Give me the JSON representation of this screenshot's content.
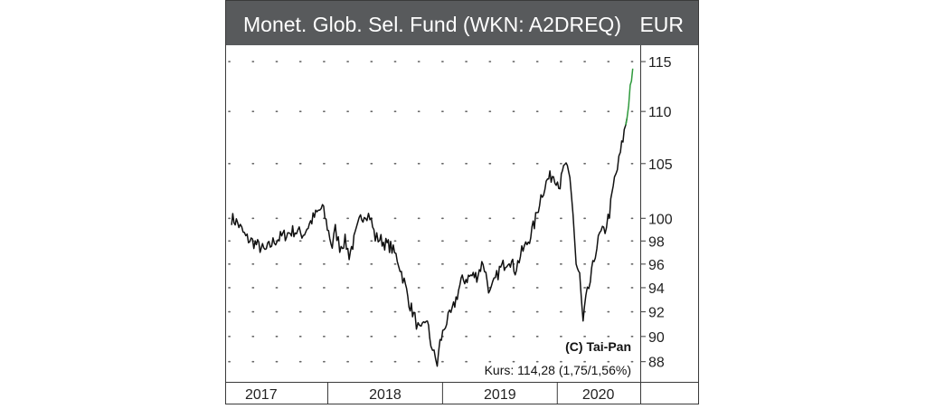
{
  "chart_data": {
    "type": "line",
    "title": "Monet. Glob. Sel. Fund (WKN: A2DREQ)",
    "currency": "EUR",
    "y_scale": "log",
    "ylim": [
      86.5,
      116.5
    ],
    "y_ticks": [
      88,
      90,
      92,
      94,
      96,
      98,
      100,
      105,
      110,
      115
    ],
    "x_ticks": [
      "2017",
      "2018",
      "2019",
      "2020"
    ],
    "x": [
      "2017-03-01",
      "2017-03-20",
      "2017-04-15",
      "2017-05-15",
      "2017-06-15",
      "2017-07-15",
      "2017-08-15",
      "2017-09-15",
      "2017-10-15",
      "2017-11-15",
      "2017-12-15",
      "2018-01-15",
      "2018-01-25",
      "2018-02-08",
      "2018-02-25",
      "2018-03-10",
      "2018-03-25",
      "2018-04-15",
      "2018-05-01",
      "2018-05-15",
      "2018-06-01",
      "2018-06-15",
      "2018-07-01",
      "2018-07-20",
      "2018-08-10",
      "2018-09-01",
      "2018-09-20",
      "2018-10-05",
      "2018-10-15",
      "2018-10-25",
      "2018-11-10",
      "2018-11-25",
      "2018-12-05",
      "2018-12-15",
      "2018-12-24",
      "2019-01-10",
      "2019-02-01",
      "2019-03-01",
      "2019-04-01",
      "2019-04-20",
      "2019-05-10",
      "2019-06-01",
      "2019-07-01",
      "2019-08-01",
      "2019-08-20",
      "2019-09-10",
      "2019-10-01",
      "2019-10-20",
      "2019-11-10",
      "2019-12-01",
      "2019-12-20",
      "2020-01-10",
      "2020-01-25",
      "2020-02-10",
      "2020-02-20",
      "2020-03-01",
      "2020-03-12",
      "2020-03-23",
      "2020-04-01",
      "2020-04-15",
      "2020-05-01",
      "2020-05-15",
      "2020-06-01",
      "2020-06-15",
      "2020-07-01",
      "2020-07-10",
      "2020-07-20",
      "2020-08-01",
      "2020-08-10",
      "2020-08-20",
      "2020-08-28"
    ],
    "series": [
      {
        "values": [
          100,
          99.6,
          98.3,
          97.8,
          97.1,
          98.0,
          98.5,
          98.9,
          98.6,
          100.0,
          101.0,
          97.5,
          99.0,
          97.5,
          98.0,
          96.8,
          98.0,
          100.0,
          100.5,
          100.2,
          98.3,
          98.2,
          97.8,
          97.5,
          96.5,
          94.5,
          92.5,
          91.5,
          90.7,
          90.3,
          91.5,
          89.5,
          88.5,
          87.8,
          89.5,
          91.0,
          92.0,
          94.5,
          95.0,
          95.0,
          96.2,
          93.5,
          95.5,
          96.5,
          95.5,
          97.0,
          98.0,
          99.5,
          102.0,
          103.5,
          104.0,
          103.0,
          105.0,
          103.5,
          100.5,
          96.0,
          95.0,
          91.0,
          93.0,
          94.5,
          97.0,
          98.5,
          99.0,
          100.5,
          103.5,
          104.5,
          106.0,
          108.0,
          109.5,
          112.5,
          114.28
        ]
      }
    ],
    "last_segment_color": "#2e9a3c",
    "line_color": "#111111",
    "grid": "dotted",
    "copyright": "(C) Tai-Pan",
    "kurs_label": "Kurs: 114,28 (1,75/1,56%)"
  },
  "colors": {
    "title_bar": "#585a5c",
    "title_text": "#ffffff",
    "frame": "#3a3a3a",
    "grid_dot": "#666666"
  }
}
